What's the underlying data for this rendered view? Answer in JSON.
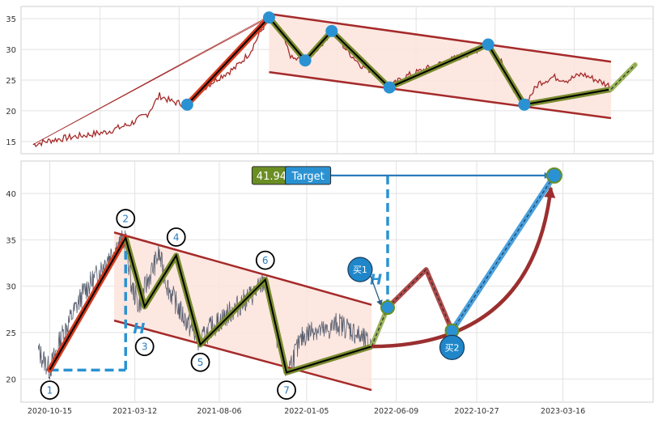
{
  "colors": {
    "price": "#a52a2a",
    "price_bottom": "#5a6070",
    "channel": "#a52a2a",
    "fill": "#fbe3dc",
    "wave_olive": "#7a8c2e",
    "wave_black": "#000000",
    "wave_red": "#d63a1e",
    "node_blue": "#2a92d2",
    "dash_blue": "#2a92d2",
    "target_bg": "#2a92d2",
    "value_bg": "#6b8e23",
    "future_red": "#b04a4a",
    "future_blue": "#4aa0dc",
    "curve": "#9b2f2f"
  },
  "chart_data": [
    {
      "type": "line",
      "panel": "top",
      "ylim": [
        13,
        37
      ],
      "y_ticks": [
        "15",
        "20",
        "25",
        "30",
        "35"
      ],
      "y_tick_values": [
        15,
        20,
        25,
        30,
        35
      ],
      "grid": true,
      "series": [
        {
          "kind": "price",
          "points": [
            [
              0,
              14.5
            ],
            [
              15,
              15.2
            ],
            [
              35,
              15.8
            ],
            [
              60,
              16.5
            ],
            [
              80,
              17.8
            ],
            [
              95,
              19.5
            ],
            [
              105,
              22.5
            ],
            [
              115,
              21.5
            ],
            [
              128,
              21
            ],
            [
              140,
              23.5
            ],
            [
              155,
              25.5
            ],
            [
              168,
              27
            ],
            [
              180,
              29.5
            ],
            [
              188,
              32.5
            ],
            [
              196,
              35.2
            ],
            [
              205,
              33
            ],
            [
              215,
              28.5
            ],
            [
              226,
              28.2
            ],
            [
              238,
              30.5
            ],
            [
              248,
              33
            ],
            [
              260,
              30
            ],
            [
              272,
              27.5
            ],
            [
              285,
              26
            ],
            [
              296,
              23.8
            ],
            [
              308,
              25.5
            ],
            [
              322,
              26.5
            ],
            [
              336,
              27.5
            ],
            [
              350,
              28.5
            ],
            [
              364,
              29.5
            ],
            [
              378,
              30.8
            ],
            [
              390,
              28
            ],
            [
              398,
              24
            ],
            [
              408,
              21
            ],
            [
              420,
              24.5
            ],
            [
              432,
              25.5
            ],
            [
              444,
              25
            ],
            [
              456,
              26
            ],
            [
              468,
              25
            ],
            [
              480,
              24
            ]
          ]
        }
      ],
      "channel": {
        "upper": [
          [
            196,
            35.8
          ],
          [
            480,
            28
          ]
        ],
        "lower": [
          [
            196,
            26.3
          ],
          [
            480,
            18.8
          ]
        ]
      },
      "wave": [
        [
          128,
          21
        ],
        [
          196,
          35.2
        ],
        [
          226,
          28.2
        ],
        [
          248,
          33
        ],
        [
          296,
          23.8
        ],
        [
          378,
          30.8
        ],
        [
          408,
          21
        ],
        [
          480,
          23.5
        ]
      ],
      "projection": [
        [
          480,
          23.5
        ],
        [
          500,
          27.5
        ]
      ]
    },
    {
      "type": "line",
      "panel": "bottom",
      "ylim": [
        17.5,
        43.5
      ],
      "y_ticks": [
        "20",
        "25",
        "30",
        "35",
        "40"
      ],
      "y_tick_values": [
        20,
        25,
        30,
        35,
        40
      ],
      "x_ticks": [
        "2020-10-15",
        "2021-03-12",
        "2021-08-06",
        "2022-01-05",
        "2022-06-09",
        "2022-10-27",
        "2023-03-16"
      ],
      "x_tick_values": [
        0,
        148,
        295,
        447,
        603,
        743,
        893
      ],
      "xlim": [
        -50,
        1050
      ],
      "grid": true,
      "series": [
        {
          "kind": "price",
          "points": [
            [
              -20,
              23
            ],
            [
              0,
              21
            ],
            [
              20,
              24.5
            ],
            [
              40,
              27
            ],
            [
              60,
              29.5
            ],
            [
              80,
              31
            ],
            [
              100,
              33
            ],
            [
              120,
              34.5
            ],
            [
              132,
              35.2
            ],
            [
              142,
              30
            ],
            [
              155,
              28
            ],
            [
              170,
              30.5
            ],
            [
              190,
              33.5
            ],
            [
              205,
              30
            ],
            [
              225,
              27.5
            ],
            [
              245,
              25.5
            ],
            [
              262,
              24
            ],
            [
              280,
              25.5
            ],
            [
              300,
              26.5
            ],
            [
              320,
              27.5
            ],
            [
              340,
              28.5
            ],
            [
              360,
              29.5
            ],
            [
              375,
              30.7
            ],
            [
              388,
              27
            ],
            [
              400,
              23
            ],
            [
              412,
              20.7
            ],
            [
              425,
              22.5
            ],
            [
              440,
              24.5
            ],
            [
              460,
              25.5
            ],
            [
              480,
              25
            ],
            [
              500,
              26
            ],
            [
              520,
              25.5
            ],
            [
              540,
              24.5
            ],
            [
              560,
              23.5
            ]
          ]
        }
      ],
      "channel": {
        "upper": [
          [
            112,
            35.8
          ],
          [
            560,
            28
          ]
        ],
        "lower": [
          [
            112,
            26.3
          ],
          [
            560,
            18.8
          ]
        ]
      },
      "wave": [
        [
          0,
          21
        ],
        [
          132,
          35.2
        ],
        [
          165,
          27.8
        ],
        [
          220,
          33.3
        ],
        [
          262,
          23.7
        ],
        [
          375,
          30.7
        ],
        [
          412,
          20.7
        ],
        [
          560,
          23.5
        ]
      ],
      "points_labels": [
        {
          "label": "1",
          "x": 0,
          "y": 18.8
        },
        {
          "label": "2",
          "x": 132,
          "y": 37.3
        },
        {
          "label": "3",
          "x": 165,
          "y": 23.5
        },
        {
          "label": "4",
          "x": 220,
          "y": 35.3
        },
        {
          "label": "5",
          "x": 262,
          "y": 21.8
        },
        {
          "label": "6",
          "x": 375,
          "y": 32.8
        },
        {
          "label": "7",
          "x": 412,
          "y": 18.8
        }
      ],
      "height_label": "H",
      "target": {
        "label": "Target",
        "value": "41.94",
        "value_num": 41.94
      },
      "buy_points": [
        {
          "label": "买1",
          "x": 588,
          "y": 27.7,
          "bubble_x": 540,
          "bubble_y": 31.8
        },
        {
          "label": "买2",
          "x": 700,
          "y": 25.2,
          "bubble_x": 700,
          "bubble_y": 23.4
        }
      ],
      "future_path": [
        [
          588,
          27.7
        ],
        [
          655,
          31.8
        ],
        [
          700,
          25.2
        ]
      ],
      "future_blue": [
        [
          700,
          25.2
        ],
        [
          878,
          41.94
        ]
      ],
      "future_green": [
        [
          560,
          23.5
        ],
        [
          588,
          27.7
        ]
      ]
    }
  ]
}
